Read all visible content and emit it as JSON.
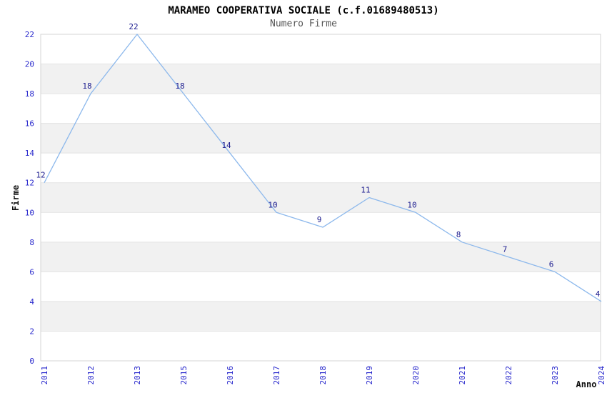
{
  "title": "MARAMEO COOPERATIVA SOCIALE (c.f.01689480513)",
  "subtitle": "Numero Firme",
  "chart_data": {
    "type": "line",
    "title": "MARAMEO COOPERATIVA SOCIALE (c.f.01689480513)",
    "subtitle": "Numero Firme",
    "categories": [
      "2011",
      "2012",
      "2013",
      "2015",
      "2016",
      "2017",
      "2018",
      "2019",
      "2020",
      "2021",
      "2022",
      "2023",
      "2024"
    ],
    "series": [
      {
        "name": "Numero Firme",
        "values": [
          12,
          18,
          22,
          18,
          14,
          10,
          9,
          11,
          10,
          8,
          7,
          6,
          4
        ]
      }
    ],
    "point_labels": [
      12,
      18,
      22,
      18,
      14,
      10,
      9,
      11,
      10,
      8,
      7,
      6,
      4
    ],
    "xlabel": "Anno",
    "ylabel": "Firme",
    "ylim": [
      0,
      22
    ],
    "ytick_step": 2,
    "yticks": [
      0,
      2,
      4,
      6,
      8,
      10,
      12,
      14,
      16,
      18,
      20,
      22
    ],
    "grid": "horizontal-lines-with-alternating-bands",
    "legend": "none",
    "colors": {
      "line": "#8cb8ec",
      "tick_label": "#2727cc",
      "data_label": "#1c1c8f",
      "band": "#f1f1f1",
      "grid": "#e3e3e3",
      "border": "#d4d4d4",
      "axis_label_text": "#111111"
    }
  }
}
